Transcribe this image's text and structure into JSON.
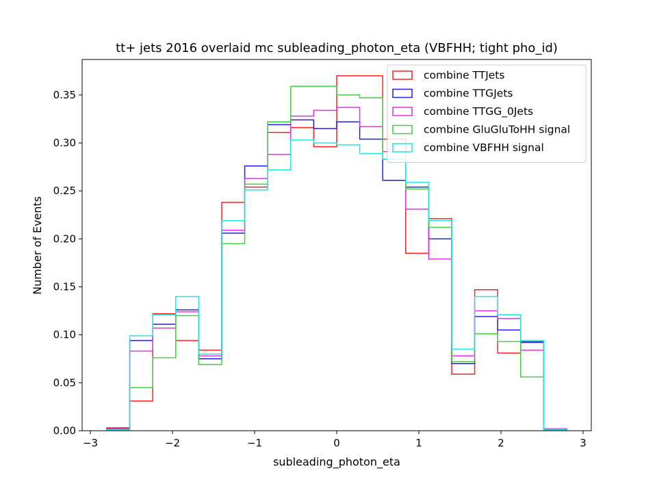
{
  "chart_data": {
    "type": "histogram-step",
    "title": "tt+ jets 2016 overlaid mc subleading_photon_eta (VBFHH; tight pho_id)",
    "xlabel": "subleading_photon_eta",
    "ylabel": "Number of Events",
    "xlim": [
      -3.1,
      3.1
    ],
    "ylim": [
      0.0,
      0.387
    ],
    "xticks": [
      -3,
      -2,
      -1,
      0,
      1,
      2,
      3
    ],
    "xtick_labels": [
      "−3",
      "−2",
      "−1",
      "0",
      "1",
      "2",
      "3"
    ],
    "yticks": [
      0.0,
      0.05,
      0.1,
      0.15,
      0.2,
      0.25,
      0.3,
      0.35
    ],
    "ytick_labels": [
      "0.00",
      "0.05",
      "0.10",
      "0.15",
      "0.20",
      "0.25",
      "0.30",
      "0.35"
    ],
    "grid": false,
    "legend_position": "top-right",
    "bin_edges": [
      -2.8,
      -2.52,
      -2.24,
      -1.96,
      -1.68,
      -1.4,
      -1.12,
      -0.84,
      -0.56,
      -0.28,
      0.0,
      0.28,
      0.56,
      0.84,
      1.12,
      1.4,
      1.68,
      1.96,
      2.24,
      2.52,
      2.8
    ],
    "series": [
      {
        "name": "combine TTJets",
        "color": "#ff1f1f",
        "values": [
          0.003,
          0.031,
          0.122,
          0.094,
          0.084,
          0.238,
          0.254,
          0.311,
          0.316,
          0.296,
          0.37,
          0.37,
          0.304,
          0.185,
          0.221,
          0.059,
          0.147,
          0.081,
          0.093,
          0.002
        ]
      },
      {
        "name": "combine TTGJets",
        "color": "#1f1fe0",
        "values": [
          0.002,
          0.094,
          0.111,
          0.126,
          0.075,
          0.206,
          0.276,
          0.319,
          0.324,
          0.315,
          0.322,
          0.304,
          0.261,
          0.254,
          0.2,
          0.07,
          0.119,
          0.105,
          0.092,
          0.001
        ]
      },
      {
        "name": "combine TTGG_0Jets",
        "color": "#e62ee6",
        "values": [
          0.002,
          0.083,
          0.107,
          0.124,
          0.078,
          0.209,
          0.263,
          0.288,
          0.328,
          0.334,
          0.337,
          0.317,
          0.291,
          0.231,
          0.179,
          0.078,
          0.125,
          0.117,
          0.084,
          0.002
        ]
      },
      {
        "name": "combine GluGluToHH signal",
        "color": "#3fcf3f",
        "values": [
          0.001,
          0.045,
          0.076,
          0.12,
          0.069,
          0.195,
          0.257,
          0.322,
          0.359,
          0.359,
          0.35,
          0.347,
          0.283,
          0.252,
          0.212,
          0.072,
          0.101,
          0.093,
          0.056,
          0.001
        ]
      },
      {
        "name": "combine VBFHH signal",
        "color": "#1fe6e6",
        "values": [
          0.001,
          0.099,
          0.121,
          0.14,
          0.08,
          0.219,
          0.251,
          0.272,
          0.303,
          0.3,
          0.298,
          0.289,
          0.283,
          0.259,
          0.219,
          0.085,
          0.14,
          0.121,
          0.094,
          0.001
        ]
      }
    ]
  }
}
